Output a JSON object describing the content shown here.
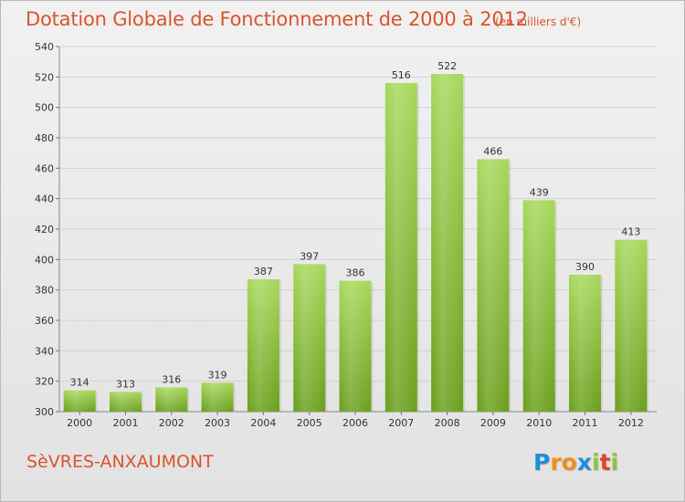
{
  "title": "Dotation Globale de Fonctionnement de 2000 à 2012",
  "unit": "(en milliers d'€)",
  "commune": "SèVRES-ANXAUMONT",
  "logo": {
    "letters": [
      "P",
      "r",
      "o",
      "x",
      "i",
      "t",
      "i"
    ],
    "colors": [
      "#1f8fd6",
      "#f28c1e",
      "#f28c1e",
      "#1f8fd6",
      "#8cc63f",
      "#e0452a",
      "#8cc63f"
    ]
  },
  "colors": {
    "title": "#d9542c",
    "bar_top": "#a6d85a",
    "bar_bottom": "#6a9e1c",
    "background": "#ececec"
  },
  "chart_data": {
    "type": "bar",
    "categories": [
      "2000",
      "2001",
      "2002",
      "2003",
      "2004",
      "2005",
      "2006",
      "2007",
      "2008",
      "2009",
      "2010",
      "2011",
      "2012"
    ],
    "values": [
      314,
      313,
      316,
      319,
      387,
      397,
      386,
      516,
      522,
      466,
      439,
      390,
      413
    ],
    "ylim": [
      300,
      540
    ],
    "yticks": [
      300,
      320,
      340,
      360,
      380,
      400,
      420,
      440,
      460,
      480,
      500,
      520,
      540
    ],
    "grid": true,
    "xlabel": "",
    "ylabel": ""
  }
}
